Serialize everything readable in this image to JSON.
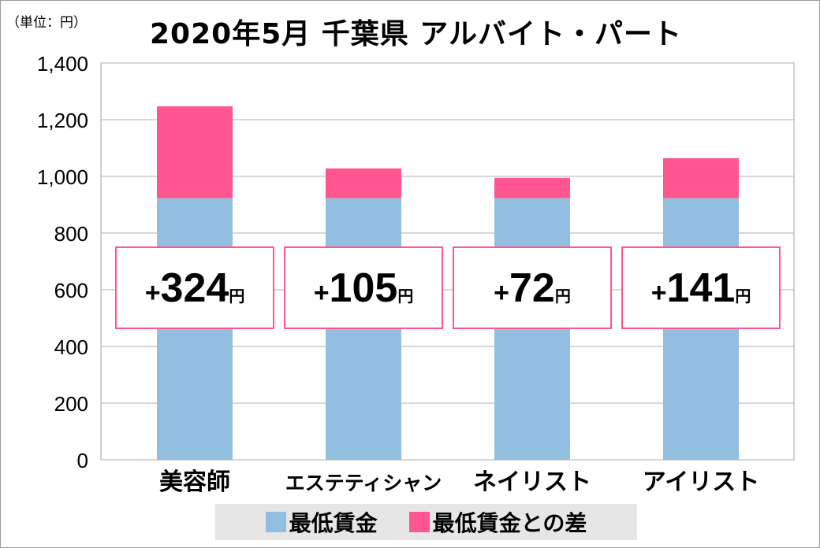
{
  "chart_data": {
    "type": "bar",
    "stacked": true,
    "title": "2020年5月 千葉県 アルバイト・パート",
    "unit_label": "（単位：円）",
    "categories": [
      "美容師",
      "エステティシャン",
      "ネイリスト",
      "アイリスト"
    ],
    "series": [
      {
        "name": "最低賃金",
        "values": [
          923,
          923,
          923,
          923
        ],
        "color": "#92bfdf"
      },
      {
        "name": "最低賃金との差",
        "values": [
          324,
          105,
          72,
          141
        ],
        "color": "#ff5590"
      }
    ],
    "data_labels": [
      {
        "prefix": "+",
        "value": "324",
        "suffix": "円"
      },
      {
        "prefix": "+",
        "value": "105",
        "suffix": "円"
      },
      {
        "prefix": "+",
        "value": "72",
        "suffix": "円"
      },
      {
        "prefix": "+",
        "value": "141",
        "suffix": "円"
      }
    ],
    "yticks": [
      0,
      200,
      400,
      600,
      800,
      1000,
      1200,
      1400
    ],
    "ytick_labels": [
      "0",
      "200",
      "400",
      "600",
      "800",
      "1,000",
      "1,200",
      "1,400"
    ],
    "ylim": [
      0,
      1400
    ],
    "grid": true,
    "legend_position": "bottom"
  }
}
